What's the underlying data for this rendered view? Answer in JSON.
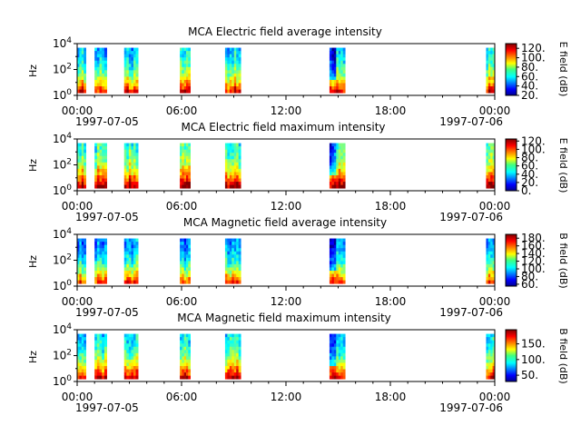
{
  "colormap": "jet",
  "chart_data": [
    {
      "type": "heatmap",
      "title": "MCA  Electric field average intensity",
      "ylabel": "Hz",
      "ylim_exponent": [
        0,
        4
      ],
      "y_ticks": [
        {
          "base": "10",
          "exp": "0"
        },
        {
          "base": "10",
          "exp": "2"
        },
        {
          "base": "10",
          "exp": "4"
        }
      ],
      "x_range_hours": [
        0,
        24
      ],
      "x_ticks": [
        "00:00",
        "06:00",
        "12:00",
        "18:00",
        "00:00"
      ],
      "x_dates": [
        "1997-07-05",
        "1997-07-06"
      ],
      "colorbar_label": "E field (dB)",
      "colorbar_range": [
        20,
        130
      ],
      "colorbar_ticks": [
        "20.",
        "40.",
        "60.",
        "80.",
        "100.",
        "120."
      ],
      "colorbar_tick_values": [
        20,
        40,
        60,
        80,
        100,
        120
      ],
      "segments_hours": [
        [
          -0.2,
          0.5
        ],
        [
          1.0,
          1.7
        ],
        [
          2.7,
          3.5
        ],
        [
          5.9,
          6.5
        ],
        [
          8.5,
          9.4
        ],
        [
          14.5,
          15.4
        ],
        [
          23.5,
          24.0
        ]
      ],
      "mean_level": 0.45
    },
    {
      "type": "heatmap",
      "title": "MCA  Electric field maximum intensity",
      "ylabel": "Hz",
      "ylim_exponent": [
        0,
        4
      ],
      "y_ticks": [
        {
          "base": "10",
          "exp": "0"
        },
        {
          "base": "10",
          "exp": "2"
        },
        {
          "base": "10",
          "exp": "4"
        }
      ],
      "x_range_hours": [
        0,
        24
      ],
      "x_ticks": [
        "00:00",
        "06:00",
        "12:00",
        "18:00",
        "00:00"
      ],
      "x_dates": [
        "1997-07-05",
        "1997-07-06"
      ],
      "colorbar_label": "E field (dB)",
      "colorbar_range": [
        0,
        125
      ],
      "colorbar_ticks": [
        "0.",
        "20.",
        "40.",
        "60.",
        "80.",
        "100.",
        "120."
      ],
      "colorbar_tick_values": [
        0,
        20,
        40,
        60,
        80,
        100,
        120
      ],
      "segments_hours": [
        [
          -0.2,
          0.5
        ],
        [
          1.0,
          1.7
        ],
        [
          2.7,
          3.5
        ],
        [
          5.9,
          6.5
        ],
        [
          8.5,
          9.4
        ],
        [
          14.5,
          15.4
        ],
        [
          23.5,
          24.0
        ]
      ],
      "mean_level": 0.55
    },
    {
      "type": "heatmap",
      "title": "MCA  Magnetic field average intensity",
      "ylabel": "Hz",
      "ylim_exponent": [
        0,
        4
      ],
      "y_ticks": [
        {
          "base": "10",
          "exp": "0"
        },
        {
          "base": "10",
          "exp": "2"
        },
        {
          "base": "10",
          "exp": "4"
        }
      ],
      "x_range_hours": [
        0,
        24
      ],
      "x_ticks": [
        "00:00",
        "06:00",
        "12:00",
        "18:00",
        "00:00"
      ],
      "x_dates": [
        "1997-07-05",
        "1997-07-06"
      ],
      "colorbar_label": "B field (dB)",
      "colorbar_range": [
        55,
        190
      ],
      "colorbar_ticks": [
        "60.",
        "80.",
        "100.",
        "120.",
        "140.",
        "160.",
        "180."
      ],
      "colorbar_tick_values": [
        60,
        80,
        100,
        120,
        140,
        160,
        180
      ],
      "segments_hours": [
        [
          -0.2,
          0.5
        ],
        [
          1.0,
          1.7
        ],
        [
          2.7,
          3.5
        ],
        [
          5.9,
          6.5
        ],
        [
          8.5,
          9.4
        ],
        [
          14.5,
          15.4
        ],
        [
          23.5,
          24.0
        ]
      ],
      "mean_level": 0.38
    },
    {
      "type": "heatmap",
      "title": "MCA  Magnetic field maximum intensity",
      "ylabel": "Hz",
      "ylim_exponent": [
        0,
        4
      ],
      "y_ticks": [
        {
          "base": "10",
          "exp": "0"
        },
        {
          "base": "10",
          "exp": "2"
        },
        {
          "base": "10",
          "exp": "4"
        }
      ],
      "x_range_hours": [
        0,
        24
      ],
      "x_ticks": [
        "00:00",
        "06:00",
        "12:00",
        "18:00",
        "00:00"
      ],
      "x_dates": [
        "1997-07-05",
        "1997-07-06"
      ],
      "colorbar_label": "B field (dB)",
      "colorbar_range": [
        30,
        195
      ],
      "colorbar_ticks": [
        "50.",
        "100.",
        "150."
      ],
      "colorbar_tick_values": [
        50,
        100,
        150
      ],
      "segments_hours": [
        [
          -0.2,
          0.5
        ],
        [
          1.0,
          1.7
        ],
        [
          2.7,
          3.5
        ],
        [
          5.9,
          6.5
        ],
        [
          8.5,
          9.4
        ],
        [
          14.5,
          15.4
        ],
        [
          23.5,
          24.0
        ]
      ],
      "mean_level": 0.48
    }
  ]
}
